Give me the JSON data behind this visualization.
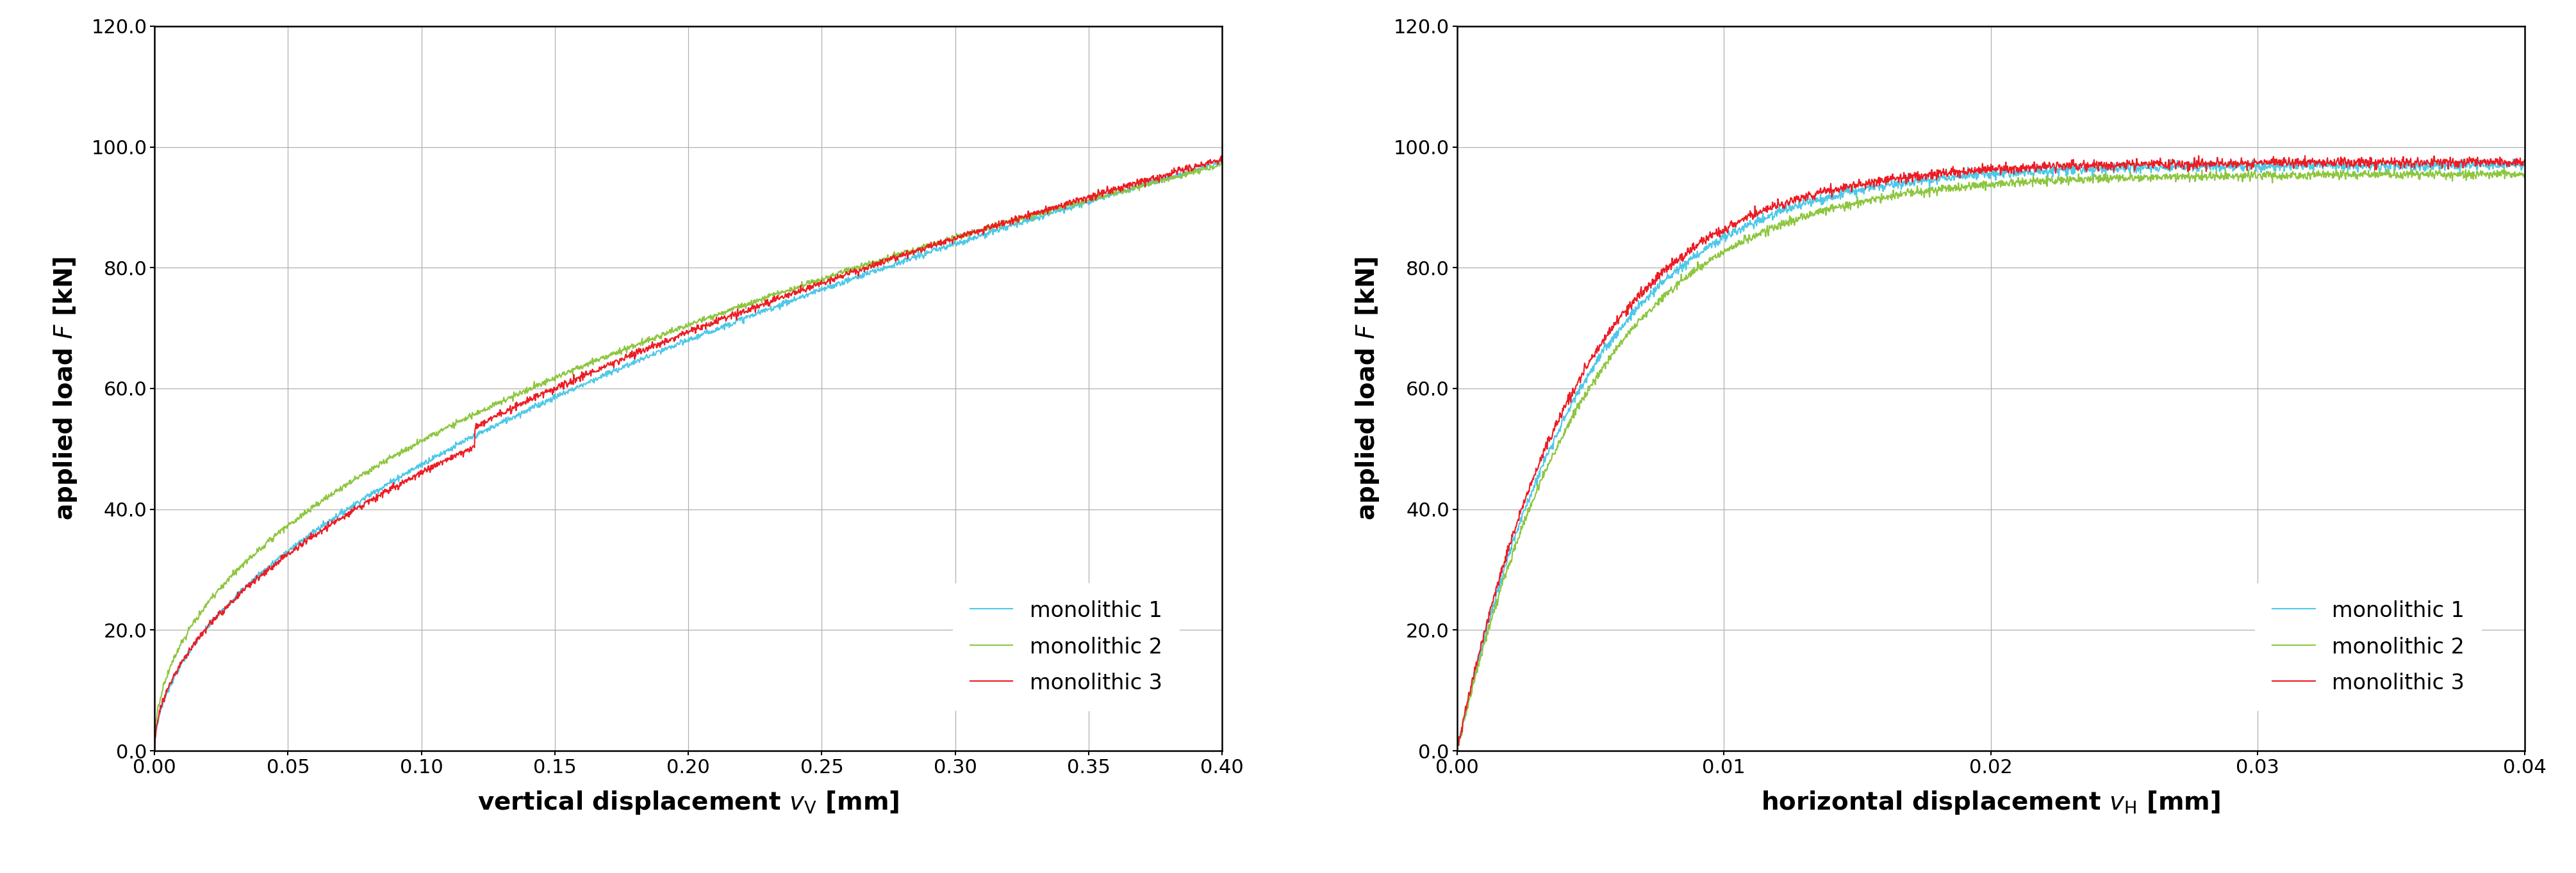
{
  "left_xlabel": "vertical displacement $v_\\mathrm{V}$ [mm]",
  "right_xlabel": "horizontal displacement $v_\\mathrm{H}$ [mm]",
  "ylabel": "applied load $F$ [kN]",
  "left_xlim": [
    0.0,
    0.4
  ],
  "right_xlim": [
    0.0,
    0.04
  ],
  "ylim": [
    0.0,
    120.0
  ],
  "left_xticks": [
    0.0,
    0.05,
    0.1,
    0.15,
    0.2,
    0.25,
    0.3,
    0.35,
    0.4
  ],
  "right_xticks": [
    0.0,
    0.01,
    0.02,
    0.03,
    0.04
  ],
  "yticks": [
    0.0,
    20.0,
    40.0,
    60.0,
    80.0,
    100.0,
    120.0
  ],
  "colors": {
    "mono1": "#4DC8E8",
    "mono2": "#8DC63F",
    "mono3": "#ED1C24"
  },
  "legend_labels": [
    "monolithic 1",
    "monolithic 2",
    "monolithic 3"
  ],
  "background_color": "#FFFFFF",
  "grid_color": "#B0B0B0",
  "line_width": 1.5
}
